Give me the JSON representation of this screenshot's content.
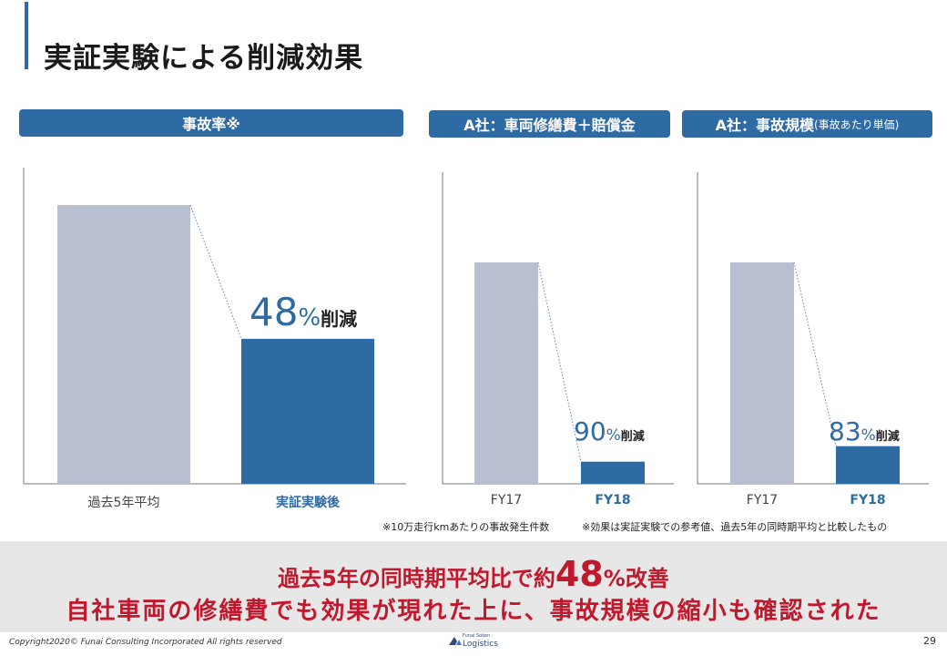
{
  "slide": {
    "title": "実証実験による削減効果",
    "page_number": "29",
    "copyright": "Copyright2020© Funai Consulting Incorporated All rights reserved",
    "logo": {
      "line1": "Funai Soken",
      "line2": "Logistics"
    }
  },
  "headers": {
    "accident_rate": "事故率※",
    "repair_cost": "A社：車両修繕費＋賠償金",
    "scale_main": "A社：事故規模",
    "scale_sub": "(事故あたり単価)"
  },
  "chart_data": [
    {
      "type": "bar",
      "categories": [
        "過去5年平均",
        "実証実験後"
      ],
      "values": [
        1.0,
        0.52
      ],
      "annotation": {
        "number": "48",
        "percent": "%",
        "word": "削減"
      }
    },
    {
      "type": "bar",
      "categories": [
        "FY17",
        "FY18"
      ],
      "values": [
        1.0,
        0.1
      ],
      "annotation": {
        "number": "90",
        "percent": "%",
        "word": "削減"
      }
    },
    {
      "type": "bar",
      "categories": [
        "FY17",
        "FY18"
      ],
      "values": [
        1.0,
        0.17
      ],
      "annotation": {
        "number": "83",
        "percent": "%",
        "word": "削減"
      }
    }
  ],
  "notes": {
    "left": "※10万走行kmあたりの事故発生件数",
    "right": "※効果は実証実験での参考値、過去5年の同時期平均と比較したもの"
  },
  "summary": {
    "line1_pre": "過去5年の同時期平均比で約",
    "line1_big": "48",
    "line1_post": "%改善",
    "line2": "自社車両の修繕費でも効果が現れた上に、事故規模の縮小も確認された"
  },
  "colors": {
    "accent": "#2e6aa3",
    "bar_before": "#b8bfd0",
    "bar_after": "#2e6aa3",
    "summary": "#c0182c"
  }
}
